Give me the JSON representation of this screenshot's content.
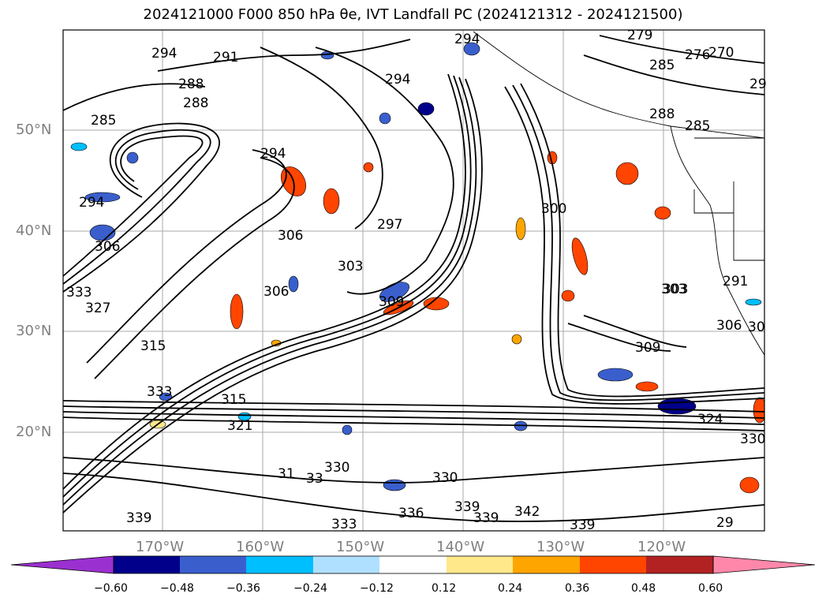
{
  "title": {
    "text": "2024121000 F000 850 hPa θe, IVT Landfall PC (2024121312 - 2024121500)"
  },
  "map": {
    "lat_ticks": [
      "50°N",
      "40°N",
      "30°N",
      "20°N"
    ],
    "lon_ticks": [
      "170°W",
      "160°W",
      "150°W",
      "140°W",
      "130°W",
      "120°W"
    ],
    "contour_labels": [
      "294",
      "291",
      "288",
      "285",
      "294",
      "294",
      "294",
      "279",
      "276",
      "270",
      "285",
      "288",
      "285",
      "29",
      "294",
      "297",
      "300",
      "306",
      "303",
      "306",
      "306",
      "309",
      "303",
      "315",
      "327",
      "333",
      "333",
      "315",
      "321",
      "330",
      "333",
      "330",
      "336",
      "339",
      "339",
      "342",
      "339",
      "309",
      "324",
      "330",
      "291",
      "303",
      "306",
      "30",
      "288",
      "29",
      "339",
      "33",
      "31"
    ]
  },
  "colorbar": {
    "ticks": [
      "−0.60",
      "−0.48",
      "−0.36",
      "−0.24",
      "−0.12",
      "0.12",
      "0.24",
      "0.36",
      "0.48",
      "0.60"
    ],
    "colors": [
      "#9b30d0",
      "#00008b",
      "#3a5fcd",
      "#00bfff",
      "#b0e0ff",
      "#ffffff",
      "#ffe88a",
      "#ffa500",
      "#ff4500",
      "#b22222",
      "#ff88aa"
    ]
  }
}
